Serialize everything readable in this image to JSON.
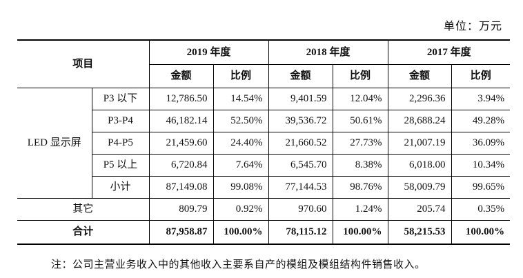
{
  "unit_label": "单位：万元",
  "header": {
    "item": "项目",
    "years": [
      "2019 年度",
      "2018 年度",
      "2017 年度"
    ],
    "amount": "金额",
    "ratio": "比例"
  },
  "group_label": "LED 显示屏",
  "rows": [
    {
      "label": "P3 以下",
      "v2019": "12,786.50",
      "r2019": "14.54%",
      "v2018": "9,401.59",
      "r2018": "12.04%",
      "v2017": "2,296.36",
      "r2017": "3.94%"
    },
    {
      "label": "P3-P4",
      "v2019": "46,182.14",
      "r2019": "52.50%",
      "v2018": "39,536.72",
      "r2018": "50.61%",
      "v2017": "28,688.24",
      "r2017": "49.28%"
    },
    {
      "label": "P4-P5",
      "v2019": "21,459.60",
      "r2019": "24.40%",
      "v2018": "21,660.52",
      "r2018": "27.73%",
      "v2017": "21,007.19",
      "r2017": "36.09%"
    },
    {
      "label": "P5 以上",
      "v2019": "6,720.84",
      "r2019": "7.64%",
      "v2018": "6,545.70",
      "r2018": "8.38%",
      "v2017": "6,018.00",
      "r2017": "10.34%"
    },
    {
      "label": "小计",
      "v2019": "87,149.08",
      "r2019": "99.08%",
      "v2018": "77,144.53",
      "r2018": "98.76%",
      "v2017": "58,009.79",
      "r2017": "99.65%"
    }
  ],
  "other": {
    "label": "其它",
    "v2019": "809.79",
    "r2019": "0.92%",
    "v2018": "970.60",
    "r2018": "1.24%",
    "v2017": "205.74",
    "r2017": "0.35%"
  },
  "total": {
    "label": "合计",
    "v2019": "87,958.87",
    "r2019": "100.00%",
    "v2018": "78,115.12",
    "r2018": "100.00%",
    "v2017": "58,215.53",
    "r2017": "100.00%"
  },
  "note": "注：公司主营业务收入中的其他收入主要系自产的模组及模组结构件销售收入。"
}
